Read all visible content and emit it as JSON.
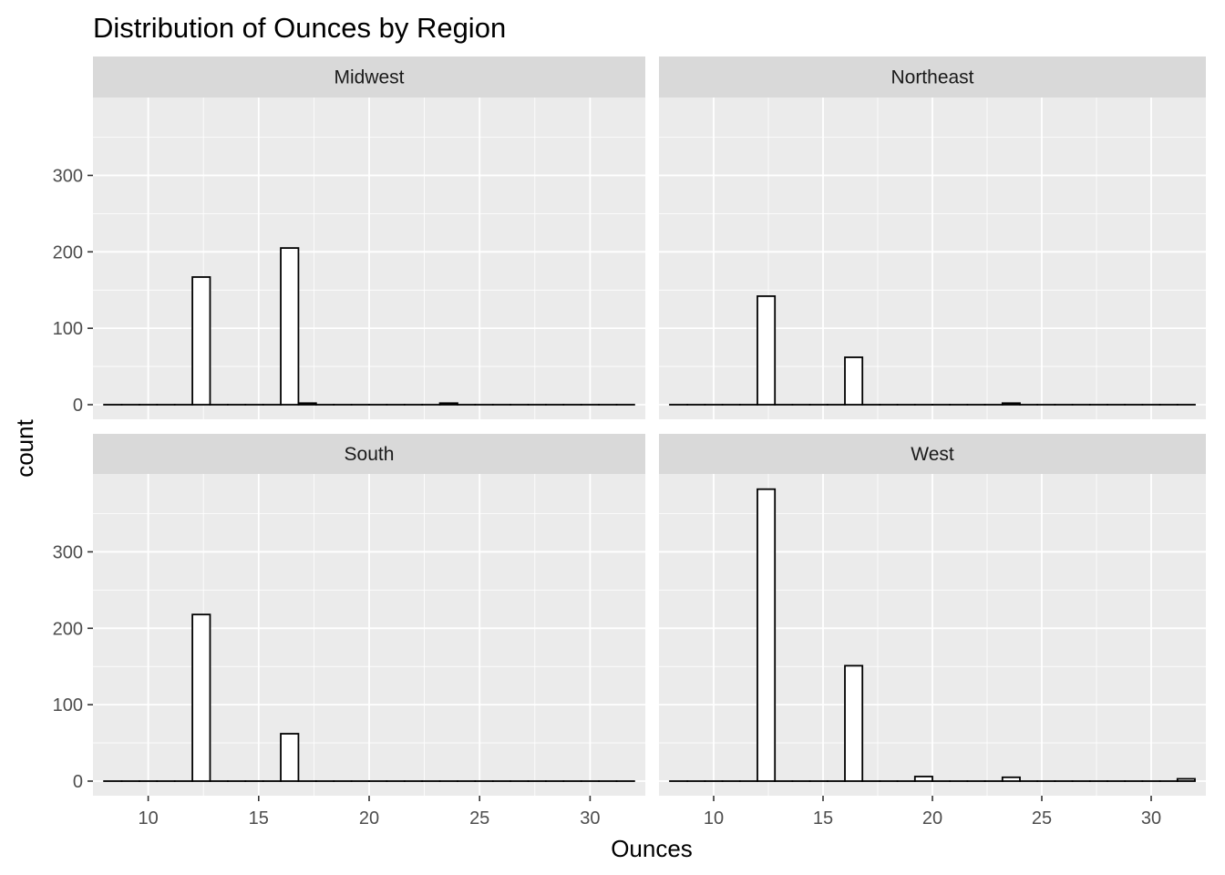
{
  "chart_data": {
    "type": "bar",
    "subtype": "faceted-histogram",
    "title": "Distribution of Ounces by Region",
    "xlabel": "Ounces",
    "ylabel": "count",
    "xlim": [
      7.5,
      32.5
    ],
    "ylim": [
      0,
      400
    ],
    "xticks": [
      10,
      15,
      20,
      25,
      30
    ],
    "yticks": [
      0,
      100,
      200,
      300
    ],
    "grid": true,
    "bins": [
      8.0,
      8.8,
      9.6,
      10.4,
      11.2,
      12.0,
      12.8,
      13.6,
      14.4,
      15.2,
      16.0,
      16.8,
      17.6,
      18.4,
      19.2,
      20.0,
      20.8,
      21.6,
      22.4,
      23.2,
      24.0,
      24.8,
      25.6,
      26.4,
      27.2,
      28.0,
      28.8,
      29.6,
      30.4,
      31.2,
      32.0
    ],
    "series": [
      {
        "name": "Midwest",
        "counts": [
          0,
          0,
          0,
          0,
          0,
          167,
          0,
          0,
          0,
          0,
          205,
          2,
          0,
          0,
          0,
          0,
          0,
          0,
          0,
          2,
          0,
          0,
          0,
          0,
          0,
          0,
          0,
          0,
          0,
          0
        ]
      },
      {
        "name": "Northeast",
        "counts": [
          0,
          0,
          0,
          0,
          0,
          142,
          0,
          0,
          0,
          0,
          62,
          0,
          0,
          0,
          0,
          0,
          0,
          0,
          0,
          2,
          0,
          0,
          0,
          0,
          0,
          0,
          0,
          0,
          0,
          0
        ]
      },
      {
        "name": "South",
        "counts": [
          0,
          0,
          0,
          0,
          0,
          218,
          0,
          0,
          0,
          0,
          62,
          0,
          0,
          0,
          0,
          0,
          0,
          0,
          0,
          0,
          0,
          0,
          0,
          0,
          0,
          0,
          0,
          0,
          0,
          0
        ]
      },
      {
        "name": "West",
        "counts": [
          0,
          0,
          0,
          0,
          0,
          382,
          0,
          0,
          0,
          0,
          151,
          0,
          0,
          0,
          6,
          0,
          0,
          0,
          0,
          5,
          0,
          0,
          0,
          0,
          0,
          0,
          0,
          0,
          0,
          3
        ]
      }
    ],
    "colors": {
      "panel_background": "#ebebeb",
      "strip_background": "#d9d9d9",
      "grid": "#ffffff",
      "bar_fill": "#ffffff",
      "bar_outline": "#000000"
    }
  }
}
